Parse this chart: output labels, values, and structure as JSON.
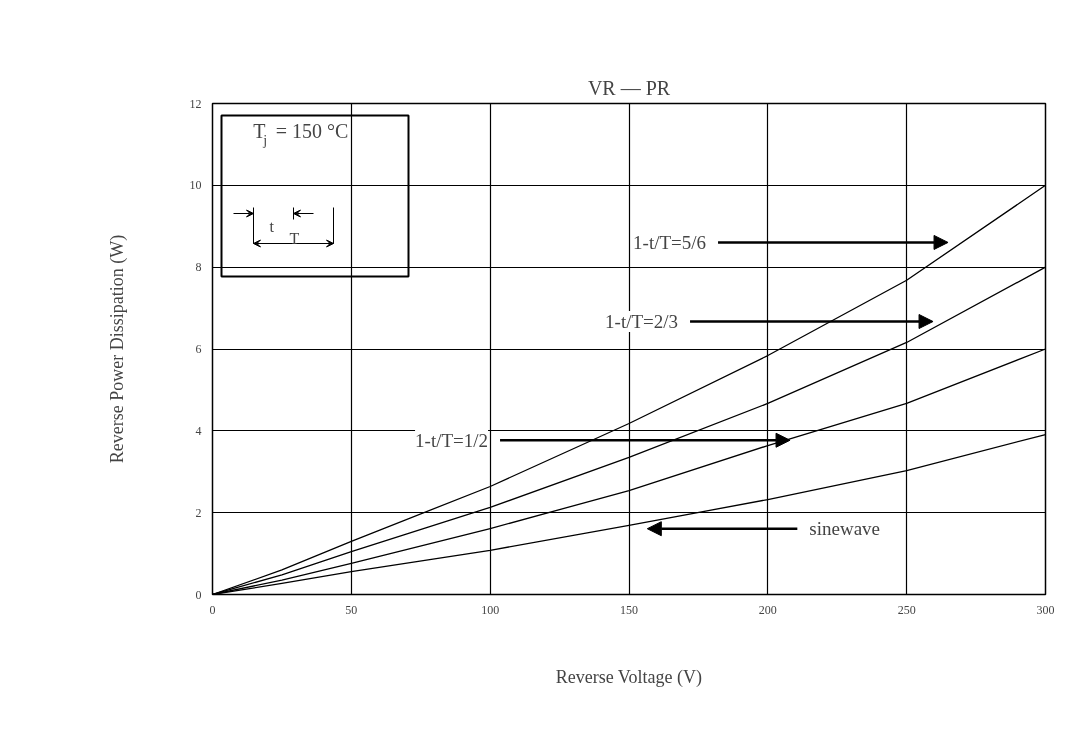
{
  "chart_data": {
    "type": "line",
    "title": "VR — PR",
    "xlabel": "Reverse Voltage (V)",
    "ylabel": "Reverse Power Dissipation (W)",
    "x": [
      0,
      25,
      50,
      100,
      150,
      200,
      250,
      300
    ],
    "series": [
      {
        "color": "#000000",
        "values": [
          0,
          0.6,
          1.3,
          2.64,
          4.18,
          5.84,
          7.68,
          10
        ]
      },
      {
        "color": "#000000",
        "values": [
          0,
          0.48,
          1.05,
          2.13,
          3.35,
          4.67,
          6.16,
          8
        ]
      },
      {
        "color": "#000000",
        "values": [
          0,
          0.35,
          0.76,
          1.61,
          2.54,
          3.64,
          4.67,
          6
        ]
      },
      {
        "color": "#000000",
        "values": [
          0,
          0.27,
          0.56,
          1.08,
          1.69,
          2.32,
          3.03,
          3.91
        ]
      }
    ],
    "xlim": [
      0,
      300
    ],
    "ylim": [
      0,
      12
    ],
    "xticks": [
      0,
      50,
      100,
      150,
      200,
      250,
      300
    ],
    "yticks": [
      0,
      2,
      4,
      6,
      8,
      10,
      12
    ],
    "grid": true,
    "annotations": [
      "T$_{j}$ = 150 °C",
      "t",
      "T",
      "1-t/T=5/6",
      "1-t/T=2/3",
      {
        "text": "1-t/T=1/2",
        "x": 208,
        "y": 3.77
      },
      "sinewave"
    ]
  }
}
